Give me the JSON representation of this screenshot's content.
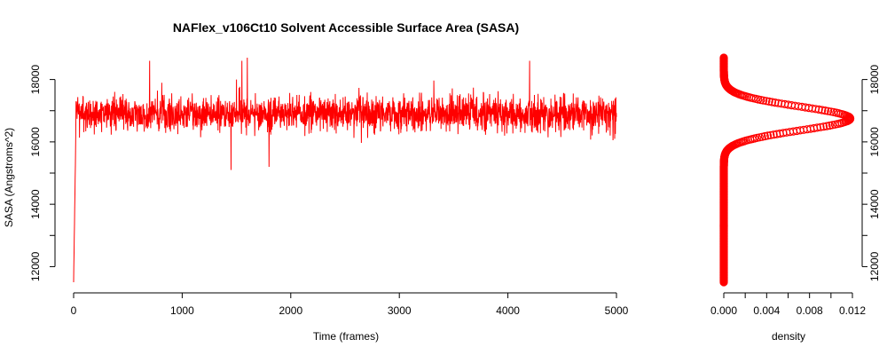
{
  "colors": {
    "series": "#ff0000",
    "axis": "#000000",
    "background": "#ffffff"
  },
  "chart_data": [
    {
      "type": "line",
      "title": "NAFlex_v106Ct10 Solvent Accessible Surface Area (SASA)",
      "xlabel": "Time (frames)",
      "ylabel": "SASA (Angstroms^2)",
      "xlim": [
        0,
        5000
      ],
      "ylim": [
        11500,
        18700
      ],
      "x_ticks": [
        0,
        1000,
        2000,
        3000,
        4000,
        5000
      ],
      "x_tick_labels": [
        "0",
        "1000",
        "2000",
        "3000",
        "4000",
        "5000"
      ],
      "y_ticks": [
        12000,
        14000,
        16000,
        18000
      ],
      "y_tick_labels": [
        "12000",
        "14000",
        "16000",
        "18000"
      ],
      "y_minor_ticks": [
        13000,
        15000,
        17000
      ],
      "series": [
        {
          "points": [
            [
              0,
              11500
            ],
            [
              20,
              16200
            ],
            [
              50,
              17200
            ],
            [
              100,
              16700
            ],
            [
              150,
              16800
            ],
            [
              300,
              16900
            ],
            [
              700,
              18600
            ],
            [
              1000,
              17000
            ],
            [
              1450,
              15100
            ],
            [
              1500,
              18000
            ],
            [
              1550,
              18600
            ],
            [
              1600,
              18700
            ],
            [
              1800,
              15200
            ],
            [
              2000,
              17000
            ],
            [
              2500,
              16900
            ],
            [
              3000,
              16900
            ],
            [
              3500,
              17000
            ],
            [
              4000,
              16900
            ],
            [
              4200,
              18600
            ],
            [
              4500,
              16900
            ],
            [
              5000,
              16800
            ]
          ],
          "noise_mean": 16900,
          "noise_sd": 380,
          "noise_min": 15500,
          "noise_max": 18300
        }
      ],
      "grid": false,
      "legend": "none"
    },
    {
      "type": "scatter",
      "xlabel": "density",
      "ylabel": "",
      "xlim": [
        0,
        0.012
      ],
      "ylim": [
        11500,
        18700
      ],
      "x_ticks": [
        0,
        0.002,
        0.004,
        0.006,
        0.008,
        0.01,
        0.012
      ],
      "x_tick_labels": [
        "0.000",
        "",
        "0.004",
        "",
        "0.008",
        "",
        "0.012"
      ],
      "y_ticks": [
        12000,
        14000,
        16000,
        18000
      ],
      "y_tick_labels": [
        "12000",
        "14000",
        "16000",
        "18000"
      ],
      "y_minor_ticks": [
        13000,
        15000,
        17000
      ],
      "y_axis_side": "right",
      "density_curve": {
        "y_from": 11500,
        "y_to": 18700,
        "peak_y": 16750,
        "peak_density": 0.0118,
        "sd": 380
      },
      "grid": false,
      "legend": "none"
    }
  ]
}
